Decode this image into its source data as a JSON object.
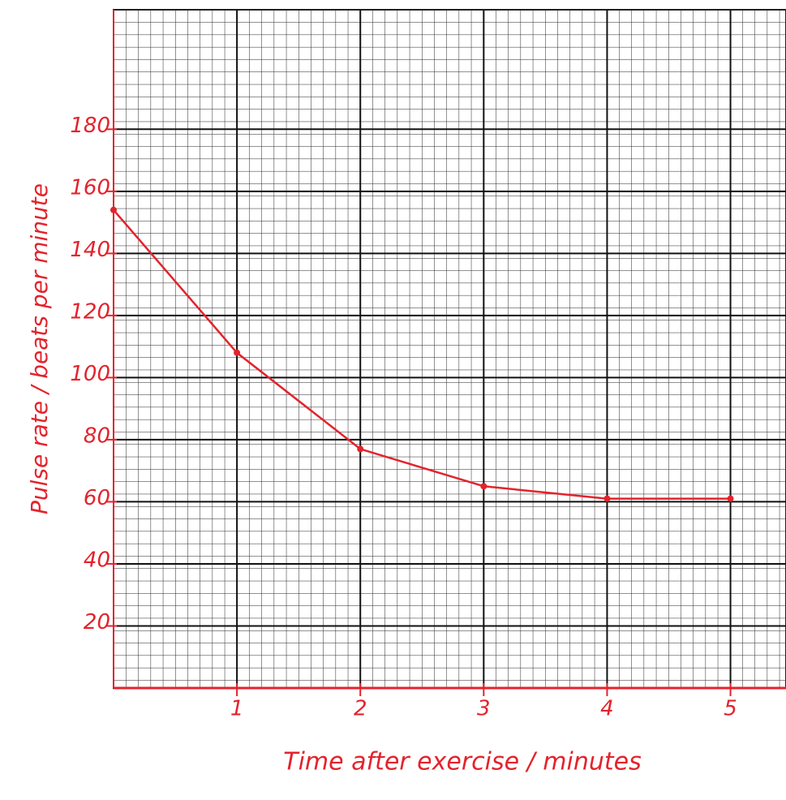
{
  "chart_data": {
    "type": "line",
    "x_label": "Time after exercise / minutes",
    "y_label": "Pulse rate / beats per minute",
    "x": [
      0,
      1,
      2,
      3,
      4,
      5
    ],
    "series": [
      {
        "name": "Pulse rate",
        "color": "#e3232c",
        "values": [
          154,
          108,
          77,
          65,
          61,
          61
        ]
      }
    ],
    "xlim": [
      0,
      5.45
    ],
    "ylim": [
      0,
      218.5
    ],
    "xticks": [
      1,
      2,
      3,
      4,
      5
    ],
    "yticks": [
      20,
      40,
      60,
      80,
      100,
      120,
      140,
      160,
      180
    ],
    "grid": true
  }
}
